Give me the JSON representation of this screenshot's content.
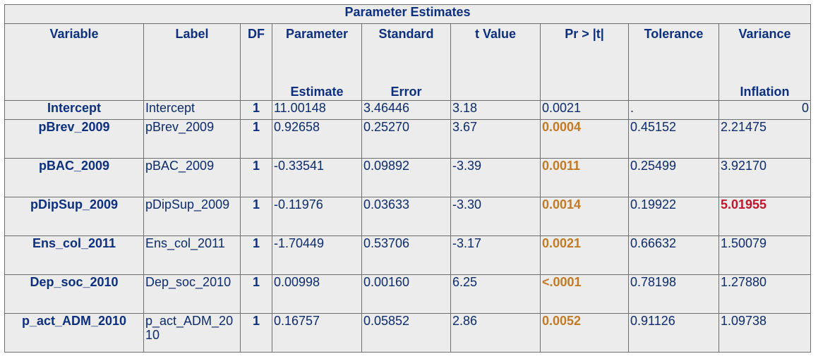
{
  "table": {
    "title": "Parameter Estimates",
    "headers": [
      {
        "line1": "Variable",
        "line2": ""
      },
      {
        "line1": "Label",
        "line2": ""
      },
      {
        "line1": "DF",
        "line2": ""
      },
      {
        "line1": "Parameter",
        "line2": "Estimate"
      },
      {
        "line1": "Standard",
        "line2": "Error"
      },
      {
        "line1": "t Value",
        "line2": ""
      },
      {
        "line1": "Pr > |t|",
        "line2": ""
      },
      {
        "line1": "Tolerance",
        "line2": ""
      },
      {
        "line1": "Variance",
        "line2": "Inflation"
      }
    ],
    "rows": [
      {
        "variable": "Intercept",
        "label": "Intercept",
        "df": "1",
        "estimate": "11.00148",
        "stderr": "3.46446",
        "tvalue": "3.18",
        "pvalue": "0.0021",
        "tolerance": ".",
        "vif": "0",
        "p_highlight": false,
        "vif_highlight": false
      },
      {
        "variable": "pBrev_2009",
        "label": "pBrev_2009",
        "df": "1",
        "estimate": "0.92658",
        "stderr": "0.25270",
        "tvalue": "3.67",
        "pvalue": "0.0004",
        "tolerance": "0.45152",
        "vif": "2.21475",
        "p_highlight": true,
        "vif_highlight": false
      },
      {
        "variable": "pBAC_2009",
        "label": "pBAC_2009",
        "df": "1",
        "estimate": "-0.33541",
        "stderr": "0.09892",
        "tvalue": "-3.39",
        "pvalue": "0.0011",
        "tolerance": "0.25499",
        "vif": "3.92170",
        "p_highlight": true,
        "vif_highlight": false
      },
      {
        "variable": "pDipSup_2009",
        "label": "pDipSup_2009",
        "df": "1",
        "estimate": "-0.11976",
        "stderr": "0.03633",
        "tvalue": "-3.30",
        "pvalue": "0.0014",
        "tolerance": "0.19922",
        "vif": "5.01955",
        "p_highlight": true,
        "vif_highlight": true
      },
      {
        "variable": "Ens_col_2011",
        "label": "Ens_col_2011",
        "df": "1",
        "estimate": "-1.70449",
        "stderr": "0.53706",
        "tvalue": "-3.17",
        "pvalue": "0.0021",
        "tolerance": "0.66632",
        "vif": "1.50079",
        "p_highlight": true,
        "vif_highlight": false
      },
      {
        "variable": "Dep_soc_2010",
        "label": "Dep_soc_2010",
        "df": "1",
        "estimate": "0.00998",
        "stderr": "0.00160",
        "tvalue": "6.25",
        "pvalue": "<.0001",
        "tolerance": "0.78198",
        "vif": "1.27880",
        "p_highlight": true,
        "vif_highlight": false
      },
      {
        "variable": "p_act_ADM_2010",
        "label": "p_act_ADM_2010",
        "df": "1",
        "estimate": "0.16757",
        "stderr": "0.05852",
        "tvalue": "2.86",
        "pvalue": "0.0052",
        "tolerance": "0.91126",
        "vif": "1.09738",
        "p_highlight": true,
        "vif_highlight": false
      }
    ]
  },
  "colors": {
    "header_text": "#0c2f7e",
    "body_text": "#0c2b6c",
    "pvalue_highlight": "#c27a24",
    "vif_highlight": "#c0152a",
    "background": "#ececec",
    "border": "#6e6e6e"
  }
}
